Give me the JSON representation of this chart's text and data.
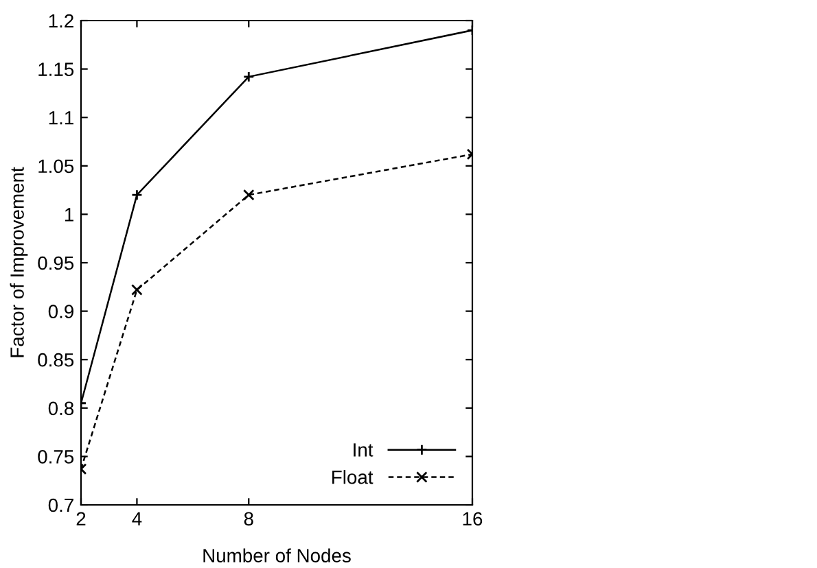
{
  "chart_data": {
    "type": "line",
    "xlabel": "Number of Nodes",
    "ylabel": "Factor of Improvement",
    "x": [
      2,
      4,
      8,
      16
    ],
    "series": [
      {
        "name": "Int",
        "color": "#000000",
        "values": [
          0.805,
          1.02,
          1.142,
          1.19
        ],
        "marker": "plus",
        "line_style": "solid"
      },
      {
        "name": "Float",
        "color": "#000000",
        "values": [
          0.737,
          0.922,
          1.02,
          1.062
        ],
        "marker": "cross",
        "line_style": "dashed"
      }
    ],
    "xlim": [
      2,
      16
    ],
    "xticks": [
      2,
      4,
      8,
      16
    ],
    "ylim": [
      0.7,
      1.2
    ],
    "yticks": [
      0.7,
      0.75,
      0.8,
      0.85,
      0.9,
      0.95,
      1,
      1.05,
      1.1,
      1.15,
      1.2
    ],
    "grid": false,
    "legend": "bottom right"
  }
}
